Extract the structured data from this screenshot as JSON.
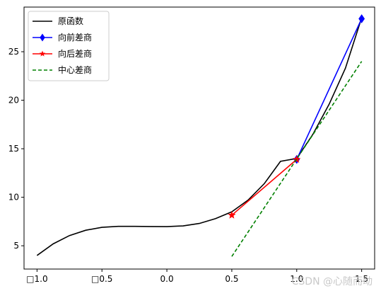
{
  "chart_data": {
    "type": "line",
    "title": "",
    "xlabel": "",
    "ylabel": "",
    "xlim": [
      -1.1,
      1.6
    ],
    "ylim": [
      2.6,
      29.6
    ],
    "xticks": [
      -1.0,
      -0.5,
      0.0,
      0.5,
      1.0,
      1.5
    ],
    "xtick_labels": [
      "□1.0",
      "□0.5",
      "0.0",
      "0.5",
      "1.0",
      "1.5"
    ],
    "yticks": [
      5,
      10,
      15,
      20,
      25
    ],
    "ytick_labels": [
      "5",
      "10",
      "15",
      "20",
      "25"
    ],
    "grid": false,
    "legend_position": "top-left",
    "series": [
      {
        "name": "原函数",
        "color": "#000000",
        "style": "solid",
        "marker": "none",
        "x": [
          -1.0,
          -0.875,
          -0.75,
          -0.625,
          -0.5,
          -0.375,
          -0.25,
          -0.125,
          0.0,
          0.125,
          0.25,
          0.375,
          0.5,
          0.625,
          0.75,
          0.875,
          1.0,
          1.125,
          1.25,
          1.375,
          1.5
        ],
        "y": [
          4.0,
          5.2,
          6.05,
          6.6,
          6.9,
          7.0,
          7.0,
          6.98,
          6.97,
          7.05,
          7.3,
          7.8,
          8.5,
          9.7,
          11.4,
          13.7,
          14.0,
          16.5,
          19.6,
          23.3,
          28.5
        ]
      },
      {
        "name": "向前差商",
        "color": "#0000ff",
        "style": "solid",
        "marker": "diamond",
        "x": [
          1.0,
          1.5
        ],
        "y": [
          13.9,
          28.4
        ]
      },
      {
        "name": "向后差商",
        "color": "#ff0000",
        "style": "solid",
        "marker": "star",
        "x": [
          0.5,
          1.0
        ],
        "y": [
          8.15,
          13.9
        ]
      },
      {
        "name": "中心差商",
        "color": "#008000",
        "style": "dashed",
        "marker": "none",
        "x": [
          0.5,
          1.5
        ],
        "y": [
          3.9,
          24.0
        ]
      }
    ]
  },
  "watermark": "CSDN @心随而动"
}
